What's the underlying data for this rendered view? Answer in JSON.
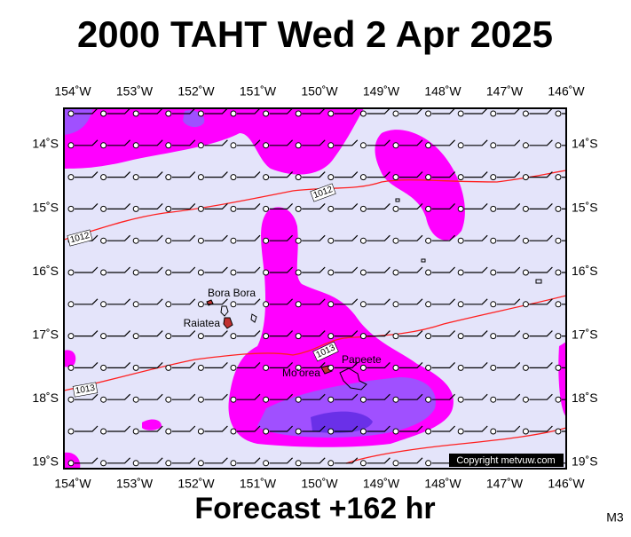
{
  "title": "2000 TAHT Wed 2 Apr 2025",
  "lon_labels": [
    "154˚W",
    "153˚W",
    "152˚W",
    "151˚W",
    "150˚W",
    "149˚W",
    "148˚W",
    "147˚W",
    "146˚W"
  ],
  "lat_labels": [
    "14˚S",
    "15˚S",
    "16˚S",
    "17˚S",
    "18˚S",
    "19˚S"
  ],
  "places": [
    "Bora Bora",
    "Raiatea",
    "Mo'orea",
    "Papeete"
  ],
  "isobar_labels": [
    "1012",
    "1012",
    "1013",
    "1013"
  ],
  "copyright": "Copyright metvuw.com",
  "forecast": "Forecast +162 hr",
  "model": "M3"
}
